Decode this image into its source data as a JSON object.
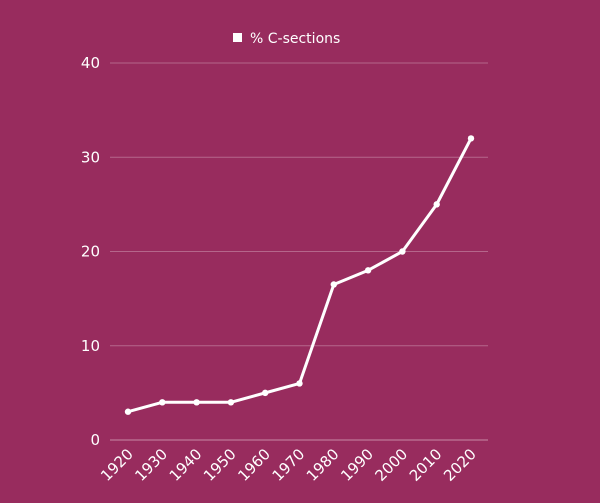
{
  "colors": {
    "background": "#982c5e",
    "line": "#ffffff",
    "grid": "#b5668b",
    "text": "#ffffff"
  },
  "chart_data": {
    "type": "line",
    "title": "",
    "xlabel": "",
    "ylabel": "",
    "categories": [
      "1920",
      "1930",
      "1940",
      "1950",
      "1960",
      "1970",
      "1980",
      "1990",
      "2000",
      "2010",
      "2020"
    ],
    "series": [
      {
        "name": "% C-sections",
        "values": [
          3,
          4,
          4,
          4,
          5,
          6,
          16.5,
          18,
          20,
          25,
          32
        ]
      }
    ],
    "ylim": [
      0,
      40
    ],
    "yticks": [
      0,
      10,
      20,
      30,
      40
    ],
    "grid": true,
    "legend": "top-center",
    "marker": "circle"
  }
}
